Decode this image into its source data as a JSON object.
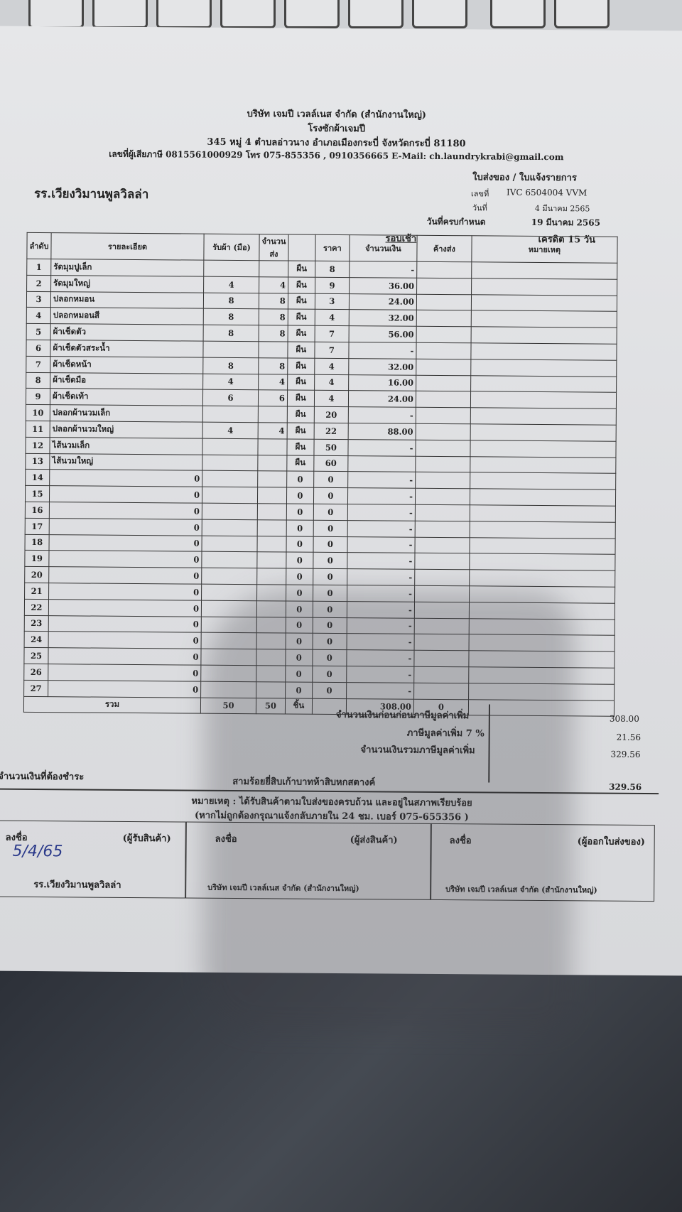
{
  "company": {
    "name": "บริษัท เจมปี เวลล์เนส จำกัด (สำนักงานใหญ่)",
    "plant": "โรงซักผ้าเจมปี",
    "address": "345 หมู่ 4 ตำบลอ่าวนาง อำเภอเมืองกระบี่ จังหวัดกระบี่ 81180",
    "contact": "เลขที่ผู้เสียภาษี 0815561000929 โทร 075-855356 , 0910356665 E-Mail: ch.laundrykrabi@gmail.com"
  },
  "doc": {
    "type": "ใบส่งของ / ใบแจ้งรายการ",
    "no_label": "เลขที่",
    "no": "IVC 6504004 VVM",
    "date_label": "วันที่",
    "date": "4 มีนาคม 2565",
    "due_label": "วันที่ครบกำหนด",
    "due": "19 มีนาคม 2565",
    "round": "รอบเช้า",
    "credit": "เครดิต 15 วัน"
  },
  "customer": "รร.เวียงวิมานพูลวิลล่า",
  "table": {
    "headers": [
      "ลำดับ",
      "รายละเอียด",
      "รับผ้า (มือ)",
      "จำนวนส่ง",
      "",
      "ราคา",
      "จำนวนเงิน",
      "ค้างส่ง",
      "หมายเหตุ"
    ],
    "rows": [
      [
        "1",
        "รัดมุมปูเล็ก",
        "",
        "",
        "ผืน",
        "8",
        "-"
      ],
      [
        "2",
        "รัดมุมใหญ่",
        "4",
        "4",
        "ผืน",
        "9",
        "36.00"
      ],
      [
        "3",
        "ปลอกหมอน",
        "8",
        "8",
        "ผืน",
        "3",
        "24.00"
      ],
      [
        "4",
        "ปลอกหมอนสี",
        "8",
        "8",
        "ผืน",
        "4",
        "32.00"
      ],
      [
        "5",
        "ผ้าเช็ดตัว",
        "8",
        "8",
        "ผืน",
        "7",
        "56.00"
      ],
      [
        "6",
        "ผ้าเช็ดตัวสระน้ำ",
        "",
        "",
        "ผืน",
        "7",
        "-"
      ],
      [
        "7",
        "ผ้าเช็ดหน้า",
        "8",
        "8",
        "ผืน",
        "4",
        "32.00"
      ],
      [
        "8",
        "ผ้าเช็ดมือ",
        "4",
        "4",
        "ผืน",
        "4",
        "16.00"
      ],
      [
        "9",
        "ผ้าเช็ดเท้า",
        "6",
        "6",
        "ผืน",
        "4",
        "24.00"
      ],
      [
        "10",
        "ปลอกผ้านวมเล็ก",
        "",
        "",
        "ผืน",
        "20",
        "-"
      ],
      [
        "11",
        "ปลอกผ้านวมใหญ่",
        "4",
        "4",
        "ผืน",
        "22",
        "88.00"
      ],
      [
        "12",
        "ไส้นวมเล็ก",
        "",
        "",
        "ผืน",
        "50",
        "-"
      ],
      [
        "13",
        "ไส้นวมใหญ่",
        "",
        "",
        "ผืน",
        "60",
        ""
      ],
      [
        "14",
        "0",
        "",
        "",
        "0",
        "0",
        "-"
      ],
      [
        "15",
        "0",
        "",
        "",
        "0",
        "0",
        "-"
      ],
      [
        "16",
        "0",
        "",
        "",
        "0",
        "0",
        "-"
      ],
      [
        "17",
        "0",
        "",
        "",
        "0",
        "0",
        "-"
      ],
      [
        "18",
        "0",
        "",
        "",
        "0",
        "0",
        "-"
      ],
      [
        "19",
        "0",
        "",
        "",
        "0",
        "0",
        "-"
      ],
      [
        "20",
        "0",
        "",
        "",
        "0",
        "0",
        "-"
      ],
      [
        "21",
        "0",
        "",
        "",
        "0",
        "0",
        "-"
      ],
      [
        "22",
        "0",
        "",
        "",
        "0",
        "0",
        "-"
      ],
      [
        "23",
        "0",
        "",
        "",
        "0",
        "0",
        "-"
      ],
      [
        "24",
        "0",
        "",
        "",
        "0",
        "0",
        "-"
      ],
      [
        "25",
        "0",
        "",
        "",
        "0",
        "0",
        "-"
      ],
      [
        "26",
        "0",
        "",
        "",
        "0",
        "0",
        "-"
      ],
      [
        "27",
        "0",
        "",
        "",
        "0",
        "0",
        "-"
      ]
    ],
    "total": {
      "label": "รวม",
      "received": "50",
      "sent": "50",
      "unit": "ชิ้น",
      "amount": "308.00",
      "pending": "0"
    }
  },
  "summary": {
    "pre_vat_label": "จำนวนเงินก่อนก่อนภาษีมูลค่าเพิ่ม",
    "pre_vat": "308.00",
    "vat_label": "ภาษีมูลค่าเพิ่ม 7 %",
    "vat": "21.56",
    "total_label": "จำนวนเงินรวมภาษีมูลค่าเพิ่ม",
    "total": "329.56",
    "due_label": "จำนวนเงินที่ต้องชำระ",
    "due_words": "สามร้อยยี่สิบเก้าบาทห้าสิบหกสตางค์",
    "due": "329.56"
  },
  "note": {
    "line1": "หมายเหตุ : ได้รับสินค้าตามใบส่งของครบถ้วน และอยู่ในสภาพเรียบร้อย",
    "line2": "(หากไม่ถูกต้องกรุณาแจ้งกลับภายใน 24 ชม. เบอร์ 075-655356 )"
  },
  "signatures": [
    {
      "label": "ลงชื่อ",
      "role": "(ผู้รับสินค้า)",
      "handwritten": "5/4/65",
      "org": "รร.เวียงวิมานพูลวิลล่า"
    },
    {
      "label": "ลงชื่อ",
      "role": "(ผู้ส่งสินค้า)",
      "org": "บริษัท เจมปี เวลล์เนส จำกัด (สำนักงานใหญ่)"
    },
    {
      "label": "ลงชื่อ",
      "role": "(ผู้ออกใบส่งของ)",
      "org": "บริษัท เจมปี เวลล์เนส จำกัด (สำนักงานใหญ่)"
    }
  ]
}
